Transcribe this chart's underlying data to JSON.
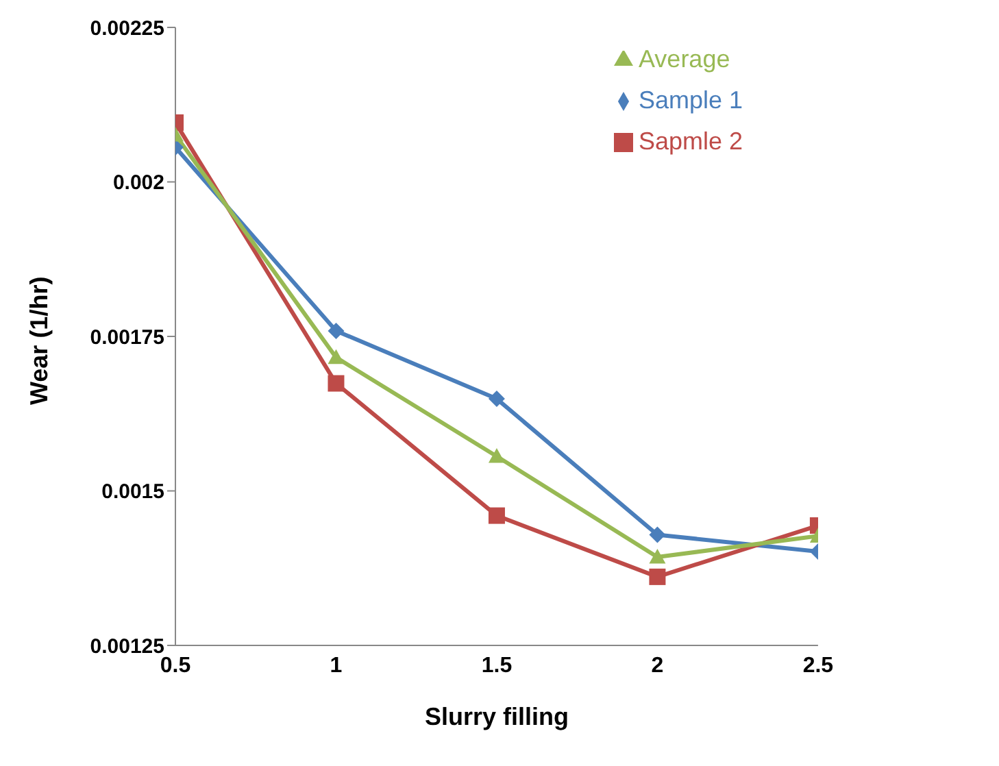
{
  "chart_data": {
    "type": "line",
    "xlabel": "Slurry filling",
    "ylabel": "Wear (1/hr)",
    "x": [
      0.5,
      1,
      1.5,
      2,
      2.5
    ],
    "series": [
      {
        "name": "Sample 1",
        "color": "#4a7ebb",
        "marker": "diamond",
        "values": [
          0.002056,
          0.001759,
          0.001649,
          0.001429,
          0.001402
        ]
      },
      {
        "name": "Sapmle 2",
        "color": "#be4b48",
        "marker": "square",
        "values": [
          0.002096,
          0.001674,
          0.00146,
          0.001361,
          0.001444
        ]
      },
      {
        "name": "Average",
        "color": "#98b954",
        "marker": "triangle",
        "values": [
          0.002076,
          0.001716,
          0.001556,
          0.001393,
          0.001427
        ]
      }
    ],
    "xlim": [
      0.5,
      2.5
    ],
    "xticks": [
      0.5,
      1,
      1.5,
      2,
      2.5
    ],
    "ylim": [
      0.00125,
      0.00225
    ],
    "yticks": [
      0.00125,
      0.0015,
      0.00175,
      0.002,
      0.00225
    ],
    "grid": false,
    "legend": "top right"
  }
}
